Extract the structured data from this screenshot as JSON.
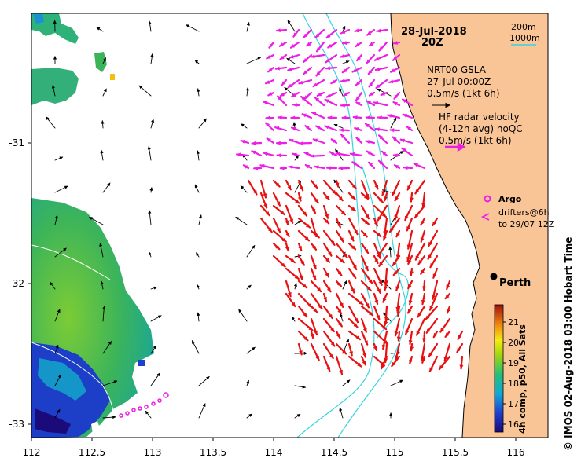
{
  "title": {
    "date": "28-Jul-2018",
    "time": "20Z"
  },
  "bathymetry_legend": {
    "line1": "200m",
    "line2": "1000m"
  },
  "gsla_legend": {
    "name": "NRT00 GSLA",
    "date": "27-Jul 00:00Z",
    "scale": "0.5m/s (1kt 6h)"
  },
  "radar_legend": {
    "name": "HF radar velocity",
    "avg": "(4-12h avg) noQC",
    "scale": "0.5m/s (1kt 6h)"
  },
  "argo_legend": {
    "label": "Argo"
  },
  "drifter_legend": {
    "line1": "drifters@6h",
    "line2": "to 29/07 12Z"
  },
  "city": {
    "name": "Perth"
  },
  "colorbar": {
    "label": "4h comp, p50, All Sats",
    "ticks": [
      "21",
      "20",
      "19",
      "18",
      "17",
      "16"
    ]
  },
  "credit": "© IMOS 02-Aug-2018 03:00 Hobart Time",
  "axes": {
    "x_ticks": [
      "112",
      "112.5",
      "113",
      "113.5",
      "114",
      "114.5",
      "115",
      "115.5",
      "116"
    ],
    "y_ticks": [
      "-31",
      "-32",
      "-33"
    ]
  },
  "colors": {
    "land": "#f9c597",
    "gsla_arrow": "#000000",
    "radar_arrow_north": "#ee1de6",
    "radar_arrow_south": "#e81010",
    "isobath": "#35d4e0",
    "drifter": "#ee1de6"
  }
}
